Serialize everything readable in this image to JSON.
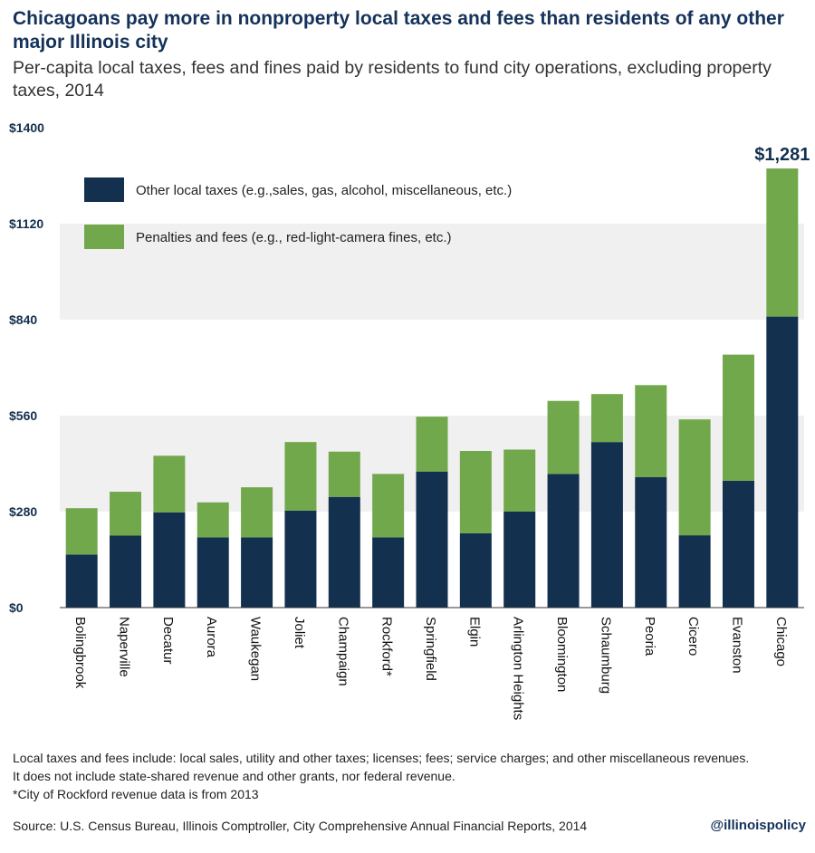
{
  "colors": {
    "taxes": "#13304f",
    "fees": "#72a84c",
    "band": "#f0f0f0"
  },
  "title": "Chicagoans pay more in nonproperty local taxes and fees than residents of any other major Illinois city",
  "subtitle": "Per-capita local taxes, fees and fines paid by residents to fund city operations, excluding property taxes, 2014",
  "notes": [
    "Local taxes and fees include: local sales, utility and other taxes; licenses; fees; service charges; and other miscellaneous revenues.",
    "It does not include state-shared revenue and other grants, nor federal revenue.",
    "*City of Rockford revenue data is from 2013"
  ],
  "source": "Source: U.S. Census Bureau, Illinois Comptroller, City Comprehensive Annual Financial Reports, 2014",
  "handle": "@illinoispolicy",
  "chart_data": {
    "type": "bar",
    "stacked": true,
    "categories": [
      "Bolingbrook",
      "Naperville",
      "Decatur",
      "Aurora",
      "Waukegan",
      "Joliet",
      "Champaign",
      "Rockford*",
      "Springfield",
      "Elgin",
      "Arlington Heights",
      "Bloomington",
      "Schaumburg",
      "Peoria",
      "Cicero",
      "Evanston",
      "Chicago"
    ],
    "series": [
      {
        "name": "Other local taxes (e.g.,sales, gas, alcohol, miscellaneous, etc.)",
        "color": "#13304f",
        "values": [
          155,
          210,
          278,
          205,
          205,
          283,
          323,
          205,
          397,
          217,
          280,
          390,
          483,
          381,
          211,
          370,
          849
        ]
      },
      {
        "name": "Penalties and fees (e.g., red-light-camera fines, etc.)",
        "color": "#72a84c",
        "values": [
          135,
          128,
          165,
          102,
          146,
          200,
          132,
          185,
          160,
          240,
          181,
          213,
          140,
          268,
          338,
          368,
          432
        ]
      }
    ],
    "ylim": [
      0,
      1400
    ],
    "yticks": [
      "$0",
      "$280",
      "$560",
      "$840",
      "$1120",
      "$1400"
    ],
    "ytick_values": [
      0,
      280,
      560,
      840,
      1120,
      1400
    ],
    "annotation": {
      "text": "$1,281",
      "category": "Chicago",
      "value": 1281
    },
    "grid": "alternating bands",
    "legend_position": "top-left"
  }
}
